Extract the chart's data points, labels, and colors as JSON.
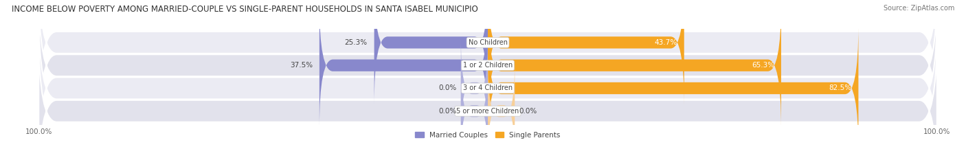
{
  "title": "INCOME BELOW POVERTY AMONG MARRIED-COUPLE VS SINGLE-PARENT HOUSEHOLDS IN SANTA ISABEL MUNICIPIO",
  "source": "Source: ZipAtlas.com",
  "categories": [
    "No Children",
    "1 or 2 Children",
    "3 or 4 Children",
    "5 or more Children"
  ],
  "married_values": [
    25.3,
    37.5,
    0.0,
    0.0
  ],
  "single_values": [
    43.7,
    65.3,
    82.5,
    0.0
  ],
  "married_color": "#8888cc",
  "married_color_light": "#b0b0dd",
  "single_color": "#f5a623",
  "single_color_light": "#f8d09a",
  "row_bg_color_odd": "#ebebf3",
  "row_bg_color_even": "#e2e2ec",
  "title_fontsize": 8.5,
  "source_fontsize": 7,
  "label_fontsize": 7.5,
  "category_fontsize": 7,
  "legend_fontsize": 7.5,
  "axis_label_fontsize": 7.5,
  "max_val": 100.0,
  "min_bar_show": 5.0
}
